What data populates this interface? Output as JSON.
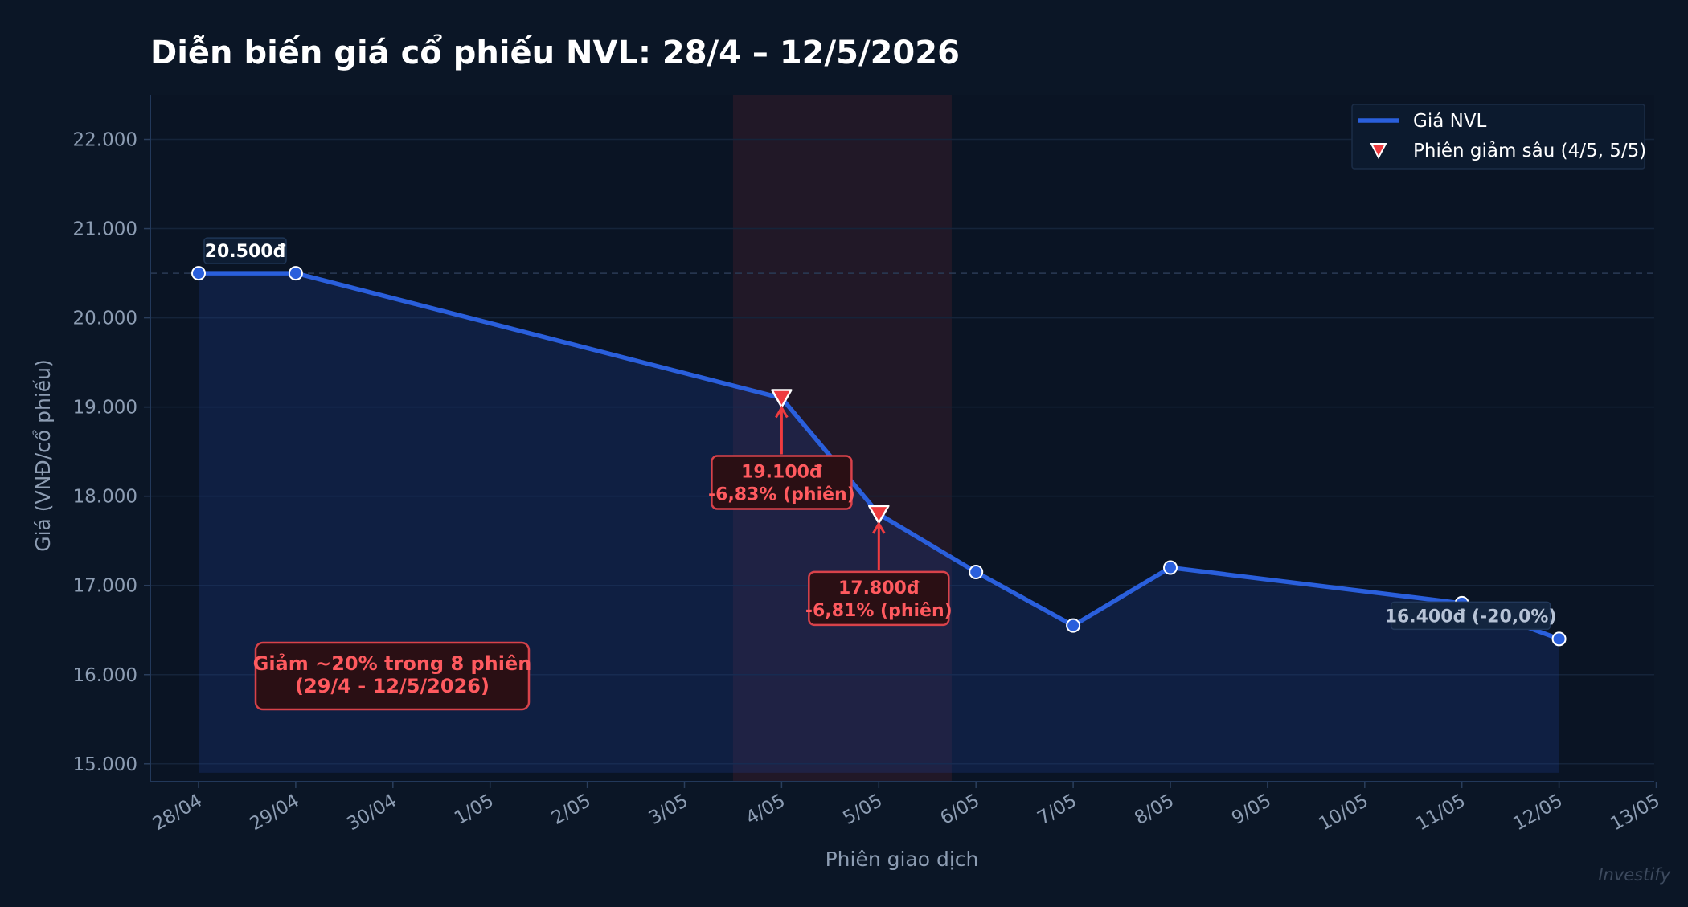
{
  "chart_data": {
    "type": "line",
    "title": "Diễn biến giá cổ phiếu NVL: 28/4 – 12/5/2026",
    "xlabel": "Phiên giao dịch",
    "ylabel": "Giá (VNĐ/cổ phiếu)",
    "x_ticks": [
      "28/04",
      "29/04",
      "30/04",
      "1/05",
      "2/05",
      "3/05",
      "4/05",
      "5/05",
      "6/05",
      "7/05",
      "8/05",
      "9/05",
      "10/05",
      "11/05",
      "12/05",
      "13/05"
    ],
    "y_ticks": [
      "15.000",
      "16.000",
      "17.000",
      "18.000",
      "19.000",
      "20.000",
      "21.000",
      "22.000"
    ],
    "ylim": [
      14800,
      22500
    ],
    "xlim": [
      "27/04",
      "13/05"
    ],
    "grid": true,
    "legend_position": "top-right",
    "series": [
      {
        "name": "Giá NVL",
        "color": "#2a5fdc",
        "points": [
          {
            "x": "28/04",
            "y": 20500
          },
          {
            "x": "29/04",
            "y": 20500
          },
          {
            "x": "4/05",
            "y": 19100
          },
          {
            "x": "5/05",
            "y": 17800
          },
          {
            "x": "6/05",
            "y": 17150
          },
          {
            "x": "7/05",
            "y": 16550
          },
          {
            "x": "8/05",
            "y": 17200
          },
          {
            "x": "11/05",
            "y": 16800
          },
          {
            "x": "12/05",
            "y": 16400
          }
        ]
      },
      {
        "name": "Phiên giảm sâu (4/5, 5/5)",
        "color": "#ef3b3f",
        "marker": "triangle-down",
        "points": [
          {
            "x": "4/05",
            "y": 19100
          },
          {
            "x": "5/05",
            "y": 17800
          }
        ]
      }
    ],
    "highlight_span": {
      "from": "3/05",
      "to": "6/05"
    },
    "reference_line": {
      "y": 20500
    },
    "annotations": {
      "start": {
        "x": "28/04",
        "y": 20500,
        "text": "20.500đ"
      },
      "drop1": {
        "x": "4/05",
        "y": 19100,
        "line1": "19.100đ",
        "line2": "-6,83% (phiên)"
      },
      "drop2": {
        "x": "5/05",
        "y": 17800,
        "line1": "17.800đ",
        "line2": "-6,81% (phiên)"
      },
      "end": {
        "x": "12/05",
        "y": 16400,
        "text": "16.400đ  (-20,0%)"
      },
      "summary": {
        "line1": "Giảm ~20% trong 8 phiên",
        "line2": "(29/4 - 12/5/2026)"
      }
    },
    "watermark": "Investify"
  }
}
